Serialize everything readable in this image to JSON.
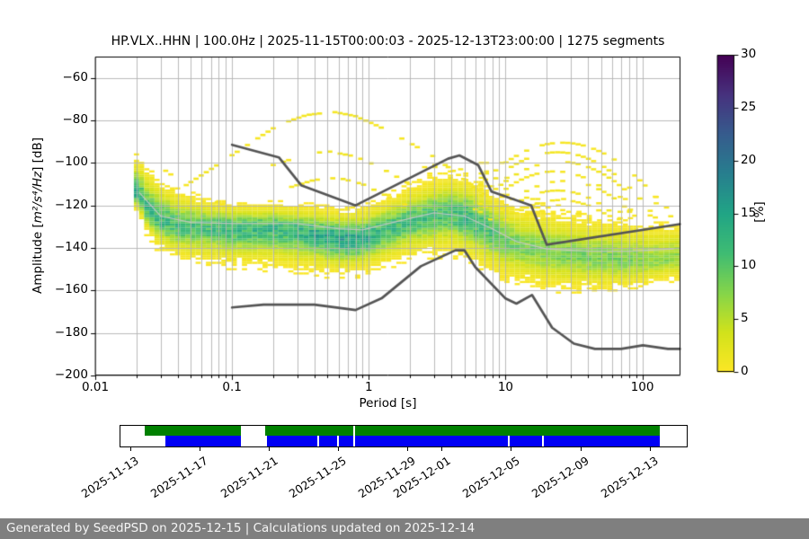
{
  "page": {
    "background": "#ffffff",
    "footer": {
      "text": "Generated by SeedPSD on 2025-12-15 | Calculations updated on 2025-12-14",
      "bg": "#7f7f7f",
      "color": "#f5f5f5"
    }
  },
  "chart_data": [
    {
      "type": "heatmap",
      "title": "HP.VLX..HHN | 100.0Hz | 2025-11-15T00:00:03 - 2025-12-13T23:00:00 | 1275 segments",
      "xlabel": "Period [s]",
      "ylabel_prefix": "Amplitude [",
      "ylabel_math": "m²/s⁴/Hz",
      "ylabel_suffix": "] [dB]",
      "x_scale": "log",
      "xlim": [
        0.01,
        190
      ],
      "ylim": [
        -200,
        -50
      ],
      "x_ticks": [
        0.01,
        0.1,
        1,
        10,
        100
      ],
      "x_tick_labels": [
        "0.01",
        "0.1",
        "1",
        "10",
        "100"
      ],
      "y_ticks": [
        -60,
        -80,
        -100,
        -120,
        -140,
        -160,
        -180,
        -200
      ],
      "grid": true,
      "grid_color": "#b3b3b3",
      "frame_color": "#000000",
      "colorbar": {
        "label": "[%]",
        "min": 0,
        "max": 30,
        "ticks": [
          0,
          5,
          10,
          15,
          20,
          25,
          30
        ],
        "colormap": "viridis_r"
      },
      "density": {
        "comment": "PPSD probability band: per period bin, mode dB, upper/lower visible extent, peak percent",
        "periods": [
          0.0205,
          0.024,
          0.03,
          0.042,
          0.065,
          0.1,
          0.15,
          0.22,
          0.32,
          0.45,
          0.65,
          0.9,
          1.3,
          1.9,
          2.8,
          4.0,
          5.5,
          7.5,
          10,
          14,
          20,
          30,
          50,
          80,
          120,
          170
        ],
        "mode_db": [
          -114,
          -122,
          -127,
          -130,
          -130,
          -131,
          -131,
          -131,
          -132,
          -134,
          -136,
          -135.5,
          -132,
          -128,
          -125,
          -124,
          -126,
          -131,
          -136,
          -140,
          -142,
          -143,
          -145,
          -146,
          -146,
          -145
        ],
        "upper_db": [
          -97,
          -103,
          -108,
          -114,
          -117,
          -119,
          -119,
          -119,
          -120,
          -121,
          -122,
          -121,
          -117,
          -112,
          -108,
          -105,
          -108,
          -113,
          -118,
          -121,
          -122,
          -124,
          -126,
          -127,
          -128,
          -128
        ],
        "lower_db": [
          -123,
          -133,
          -141,
          -145,
          -147,
          -148,
          -148,
          -149,
          -150,
          -151,
          -152,
          -151,
          -148,
          -145,
          -143,
          -142,
          -146,
          -151,
          -155,
          -157,
          -159,
          -160,
          -160,
          -159,
          -157,
          -155
        ],
        "peak_pct": [
          13,
          12,
          12,
          11,
          11,
          12,
          12,
          12,
          13,
          14,
          15,
          14,
          12,
          11,
          11,
          11,
          12,
          11,
          9,
          8,
          8,
          8,
          8,
          8,
          7,
          7
        ]
      },
      "mean_line": {
        "color": "#c6c6c6",
        "points": [
          [
            0.021,
            -114
          ],
          [
            0.03,
            -125
          ],
          [
            0.05,
            -128
          ],
          [
            0.1,
            -128.5
          ],
          [
            0.3,
            -128.5
          ],
          [
            0.6,
            -131
          ],
          [
            0.9,
            -131.5
          ],
          [
            1.5,
            -128
          ],
          [
            3,
            -123.5
          ],
          [
            5,
            -125
          ],
          [
            8,
            -131
          ],
          [
            12,
            -137
          ],
          [
            20,
            -140.5
          ],
          [
            40,
            -141.5
          ],
          [
            80,
            -141.5
          ],
          [
            170,
            -140.5
          ]
        ]
      },
      "noise_models": {
        "color": "#555555",
        "nhnm": [
          [
            0.1,
            -91.5
          ],
          [
            0.22,
            -97.4
          ],
          [
            0.32,
            -110.5
          ],
          [
            0.8,
            -120.0
          ],
          [
            3.8,
            -98.0
          ],
          [
            4.6,
            -96.5
          ],
          [
            6.3,
            -101.0
          ],
          [
            7.9,
            -113.5
          ],
          [
            15.4,
            -120.0
          ],
          [
            20.0,
            -138.5
          ],
          [
            188.0,
            -128.8
          ]
        ],
        "nlnm": [
          [
            0.1,
            -168.0
          ],
          [
            0.17,
            -166.7
          ],
          [
            0.4,
            -166.7
          ],
          [
            0.8,
            -169.2
          ],
          [
            1.24,
            -163.7
          ],
          [
            2.4,
            -148.6
          ],
          [
            4.3,
            -141.1
          ],
          [
            5.0,
            -141.1
          ],
          [
            6.0,
            -149.0
          ],
          [
            10.0,
            -163.8
          ],
          [
            12.0,
            -166.2
          ],
          [
            15.6,
            -162.1
          ],
          [
            21.9,
            -177.5
          ],
          [
            31.6,
            -185.0
          ],
          [
            45.0,
            -187.5
          ],
          [
            70.0,
            -187.5
          ],
          [
            101.0,
            -185.8
          ],
          [
            154.0,
            -187.5
          ],
          [
            188.0,
            -187.5
          ]
        ]
      },
      "event_arcs": [
        {
          "dash": 0.22,
          "points": [
            [
              0.05,
              -109
            ],
            [
              0.07,
              -103
            ],
            [
              0.12,
              -93
            ],
            [
              0.22,
              -82
            ],
            [
              0.35,
              -77.5
            ],
            [
              0.55,
              -76
            ],
            [
              0.8,
              -78
            ],
            [
              1.2,
              -83
            ],
            [
              1.8,
              -89
            ],
            [
              2.9,
              -96.5
            ],
            [
              4.2,
              -104
            ],
            [
              5.5,
              -110
            ],
            [
              7.5,
              -116
            ]
          ]
        },
        {
          "dash": 0.45,
          "points": [
            [
              0.2,
              -101
            ],
            [
              0.35,
              -96
            ],
            [
              0.5,
              -94.5
            ],
            [
              0.8,
              -97
            ],
            [
              1.2,
              -102
            ],
            [
              2.0,
              -110
            ],
            [
              3.0,
              -117
            ]
          ]
        },
        {
          "dash": 0.5,
          "points": [
            [
              0.25,
              -112
            ],
            [
              0.4,
              -108
            ],
            [
              0.6,
              -107
            ],
            [
              0.9,
              -110
            ],
            [
              1.4,
              -116
            ],
            [
              2.2,
              -122
            ]
          ]
        },
        {
          "dash": 0.4,
          "points": [
            [
              0.03,
              -102
            ],
            [
              0.045,
              -110
            ],
            [
              0.07,
              -117
            ],
            [
              0.1,
              -122
            ]
          ]
        }
      ],
      "arc_bundle": {
        "comment": "long-period outlier arcs [peak_period_s, peak_db, curvature_db_per_decade2]",
        "arcs": [
          [
            26,
            -90.5,
            55
          ],
          [
            24,
            -95,
            60
          ],
          [
            25,
            -99.5,
            58
          ],
          [
            23,
            -104,
            64
          ],
          [
            27,
            -108.5,
            62
          ],
          [
            24,
            -113,
            66
          ],
          [
            25,
            -117.5,
            60
          ],
          [
            23,
            -122,
            68
          ]
        ],
        "min_period": 6.0,
        "max_period": 175,
        "clip_db": -127,
        "dash": 0.32
      }
    },
    {
      "type": "bar",
      "name": "data-availability-timeline",
      "green_color": "#008000",
      "blue_color": "#0000f5",
      "green_segments_pct": [
        [
          4.27,
          21.2
        ],
        [
          25.63,
          95.25
        ]
      ],
      "blue_segments_pct": [
        [
          7.91,
          21.2
        ],
        [
          25.95,
          95.25
        ]
      ],
      "white_lines_blue_pct": [
        34.81,
        38.29,
        68.35,
        74.37
      ],
      "white_lines_full_pct": [
        41.14
      ],
      "ticks": [
        {
          "label": "2025-11-13",
          "pct": 1.9
        },
        {
          "label": "2025-11-17",
          "pct": 14.1
        },
        {
          "label": "2025-11-21",
          "pct": 26.3
        },
        {
          "label": "2025-11-25",
          "pct": 38.4
        },
        {
          "label": "2025-11-29",
          "pct": 50.6
        },
        {
          "label": "2025-12-01",
          "pct": 56.7
        },
        {
          "label": "2025-12-05",
          "pct": 68.9
        },
        {
          "label": "2025-12-09",
          "pct": 81.1
        },
        {
          "label": "2025-12-13",
          "pct": 93.3
        }
      ]
    }
  ]
}
